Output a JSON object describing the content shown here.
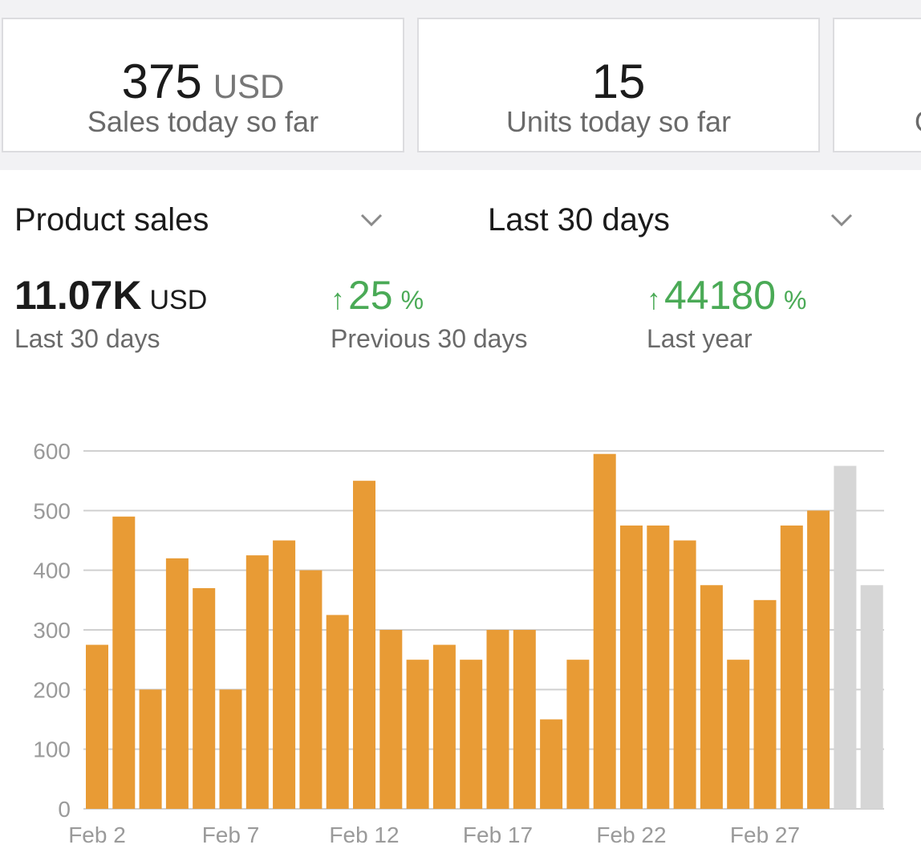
{
  "tiles": [
    {
      "value": "375",
      "unit": "USD",
      "label": "Sales today so far"
    },
    {
      "value": "15",
      "unit": "",
      "label": "Units today so far"
    },
    {
      "value": "",
      "unit": "",
      "label": "O"
    }
  ],
  "selectors": {
    "metric": {
      "label": "Product sales",
      "icon": "chevron-down-icon"
    },
    "period": {
      "label": "Last 30 days",
      "icon": "chevron-down-icon"
    }
  },
  "summary": {
    "total": {
      "value": "11.07K",
      "unit": "USD",
      "label": "Last 30 days"
    },
    "vs_previous": {
      "arrow": "↑",
      "value": "25",
      "unit": "%",
      "label": "Previous 30 days"
    },
    "vs_last_year": {
      "arrow": "↑",
      "value": "44180",
      "unit": "%",
      "label": "Last year"
    }
  },
  "colors": {
    "bar": "#e89b35",
    "bar_projected": "#d6d6d6",
    "positive": "#4aaa56",
    "grid": "#d0d0d0"
  },
  "chart_data": {
    "type": "bar",
    "ylim": [
      0,
      600
    ],
    "yticks": [
      0,
      100,
      200,
      300,
      400,
      500,
      600
    ],
    "grid": true,
    "xtick_labels": [
      {
        "index": 0,
        "label": "Feb 2"
      },
      {
        "index": 5,
        "label": "Feb 7"
      },
      {
        "index": 10,
        "label": "Feb 12"
      },
      {
        "index": 15,
        "label": "Feb 17"
      },
      {
        "index": 20,
        "label": "Feb 22"
      },
      {
        "index": 25,
        "label": "Feb 27"
      }
    ],
    "series": [
      {
        "values": [
          275,
          490,
          200,
          420,
          370,
          200,
          425,
          450,
          400,
          325,
          550,
          300,
          250,
          275,
          250,
          300,
          300,
          150,
          250,
          595,
          475,
          475,
          450,
          375,
          250,
          350,
          475,
          500
        ],
        "color": "#e89b35"
      },
      {
        "offset": 28,
        "values": [
          575,
          375
        ],
        "color": "#d6d6d6"
      }
    ]
  }
}
